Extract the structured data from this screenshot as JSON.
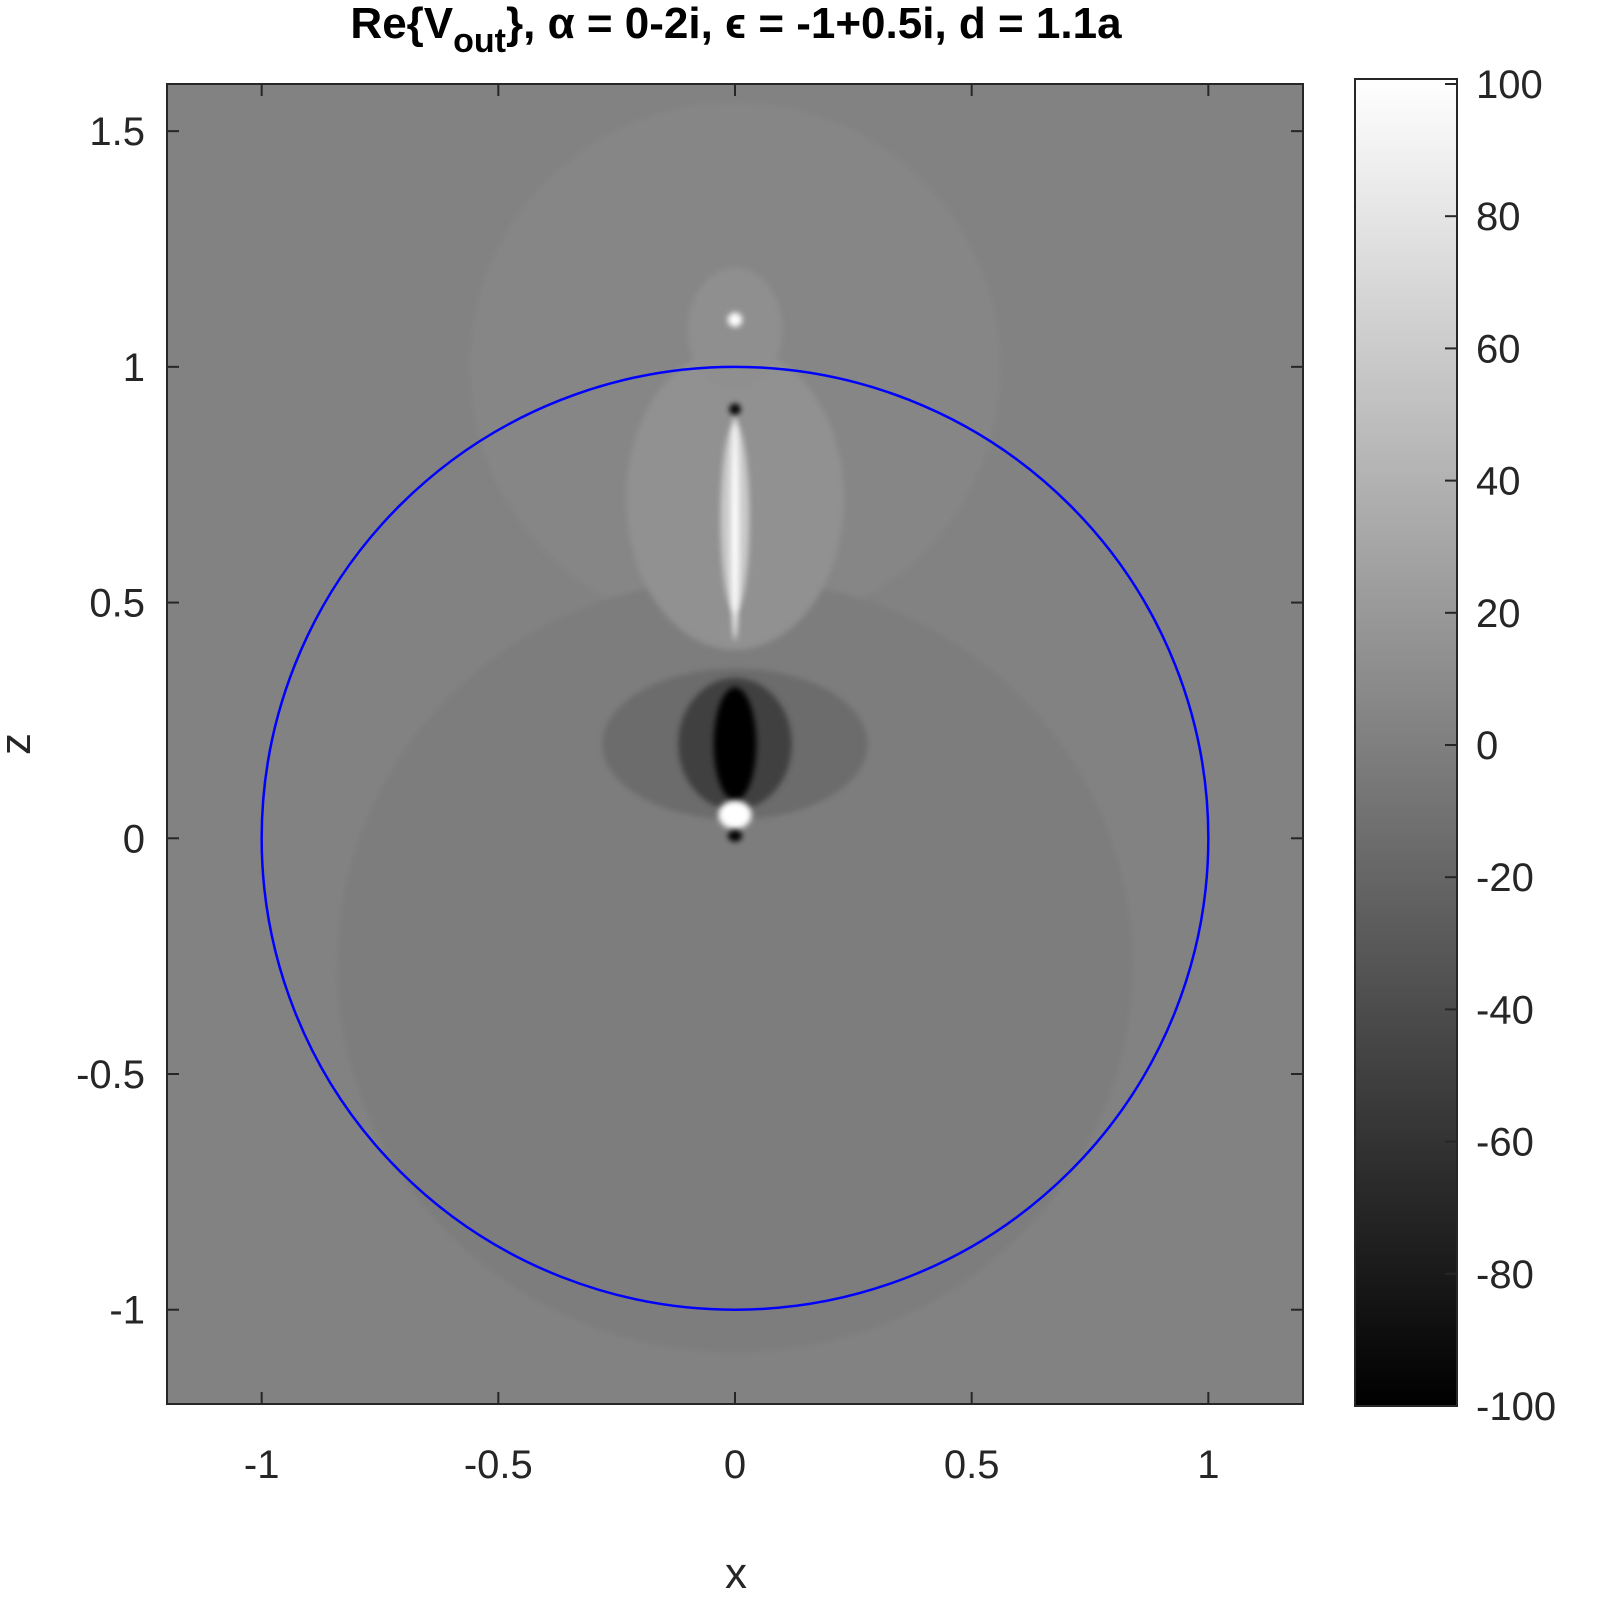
{
  "chart_data": {
    "type": "field",
    "title_parts": [
      "Re{V",
      "out",
      "}, α = 0-2i,  ϵ = -1+0.5i,  d = 1.1a"
    ],
    "xlabel": "x",
    "ylabel": "z",
    "xlim": [
      -1.2,
      1.2
    ],
    "ylim": [
      -1.2,
      1.6
    ],
    "xticks": [
      -1,
      -0.5,
      0,
      0.5,
      1
    ],
    "yticks": [
      -1,
      -0.5,
      0,
      0.5,
      1,
      1.5
    ],
    "clim": [
      -100,
      100
    ],
    "cticks": [
      -100,
      -80,
      -60,
      -40,
      -20,
      0,
      20,
      40,
      60,
      80,
      100
    ],
    "colormap": [
      "#000000",
      "#ffffff"
    ],
    "background": 2,
    "features": [
      {
        "x": 0,
        "z": 1.0,
        "rx": 0.56,
        "rz": 0.56,
        "value": 5
      },
      {
        "x": 0,
        "z": -0.27,
        "rx": 0.84,
        "rz": 0.82,
        "value": -2
      },
      {
        "x": 0,
        "z": 0.72,
        "rx": 0.23,
        "rz": 0.32,
        "value": 14
      },
      {
        "x": 0,
        "z": 1.08,
        "rx": 0.1,
        "rz": 0.13,
        "value": 12
      },
      {
        "x": 0,
        "z": 0.68,
        "rx": 0.03,
        "rz": 0.2,
        "value": 60
      },
      {
        "x": 0,
        "z": 0.66,
        "rx": 0.008,
        "rz": 0.24,
        "value": 100
      },
      {
        "x": 0,
        "z": 0.2,
        "rx": 0.28,
        "rz": 0.16,
        "value": -15
      },
      {
        "x": 0,
        "z": 0.2,
        "rx": 0.12,
        "rz": 0.14,
        "value": -50
      },
      {
        "x": 0,
        "z": 0.2,
        "rx": 0.045,
        "rz": 0.12,
        "value": -100
      },
      {
        "x": 0,
        "z": 0.05,
        "rx": 0.035,
        "rz": 0.03,
        "value": 100
      },
      {
        "x": 0,
        "z": 0.005,
        "rx": 0.015,
        "rz": 0.012,
        "value": -100
      },
      {
        "x": 0,
        "z": 1.1,
        "rx": 0.015,
        "rz": 0.015,
        "value": 100
      },
      {
        "x": 0,
        "z": 0.91,
        "rx": 0.012,
        "rz": 0.012,
        "value": -100
      }
    ],
    "circle": {
      "x": 0,
      "z": 0,
      "r": 1,
      "color": "#0000ff"
    }
  }
}
